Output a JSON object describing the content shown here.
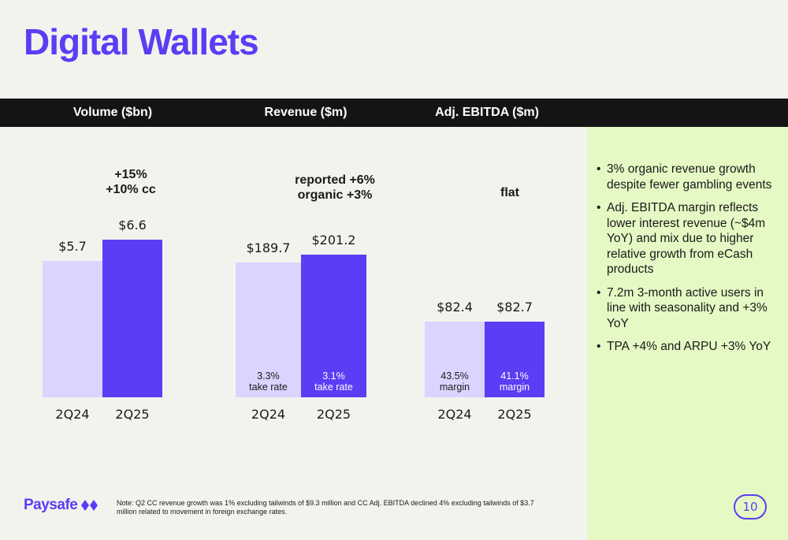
{
  "title": "Digital Wallets",
  "header": {
    "volume": "Volume ($bn)",
    "revenue": "Revenue ($m)",
    "ebitda": "Adj. EBITDA ($m)"
  },
  "chart_data": [
    {
      "type": "bar",
      "title": "Volume ($bn)",
      "categories": [
        "2Q24",
        "2Q25"
      ],
      "values": [
        5.7,
        6.6
      ],
      "value_labels": [
        "$5.7",
        "$6.6"
      ],
      "growth_lines": [
        "+15%",
        "+10% cc"
      ],
      "colors": [
        "#dcd4fe",
        "#5b3df5"
      ]
    },
    {
      "type": "bar",
      "title": "Revenue ($m)",
      "categories": [
        "2Q24",
        "2Q25"
      ],
      "values": [
        189.7,
        201.2
      ],
      "value_labels": [
        "$189.7",
        "$201.2"
      ],
      "growth_lines": [
        "reported +6%",
        "organic +3%"
      ],
      "inbar_labels": [
        [
          "3.3%",
          "take rate"
        ],
        [
          "3.1%",
          "take rate"
        ]
      ],
      "colors": [
        "#dcd4fe",
        "#5b3df5"
      ]
    },
    {
      "type": "bar",
      "title": "Adj. EBITDA ($m)",
      "categories": [
        "2Q24",
        "2Q25"
      ],
      "values": [
        82.4,
        82.7
      ],
      "value_labels": [
        "$82.4",
        "$82.7"
      ],
      "growth_lines": [
        "flat"
      ],
      "inbar_labels": [
        [
          "43.5%",
          "margin"
        ],
        [
          "41.1%",
          "margin"
        ]
      ],
      "colors": [
        "#dcd4fe",
        "#5b3df5"
      ]
    }
  ],
  "bullets": [
    "3% organic revenue growth despite fewer gambling events",
    "Adj. EBITDA margin reflects lower interest revenue (~$4m YoY) and mix due to higher relative growth from eCash products",
    "7.2m 3-month active users in line with seasonality and +3% YoY",
    "TPA +4% and ARPU +3% YoY"
  ],
  "footer": {
    "logo": "Paysafe",
    "note": "Note: Q2 CC revenue growth was 1% excluding tailwinds of $9.3 million and CC Adj. EBITDA declined 4% excluding tailwinds of $3.7 million related to movement in foreign exchange rates.",
    "page": "10"
  },
  "colors": {
    "accent": "#5b3df5",
    "light_bar": "#dcd4fe",
    "panel": "#e5f9c4",
    "header_bar": "#141414",
    "background": "#f3f3ee"
  }
}
